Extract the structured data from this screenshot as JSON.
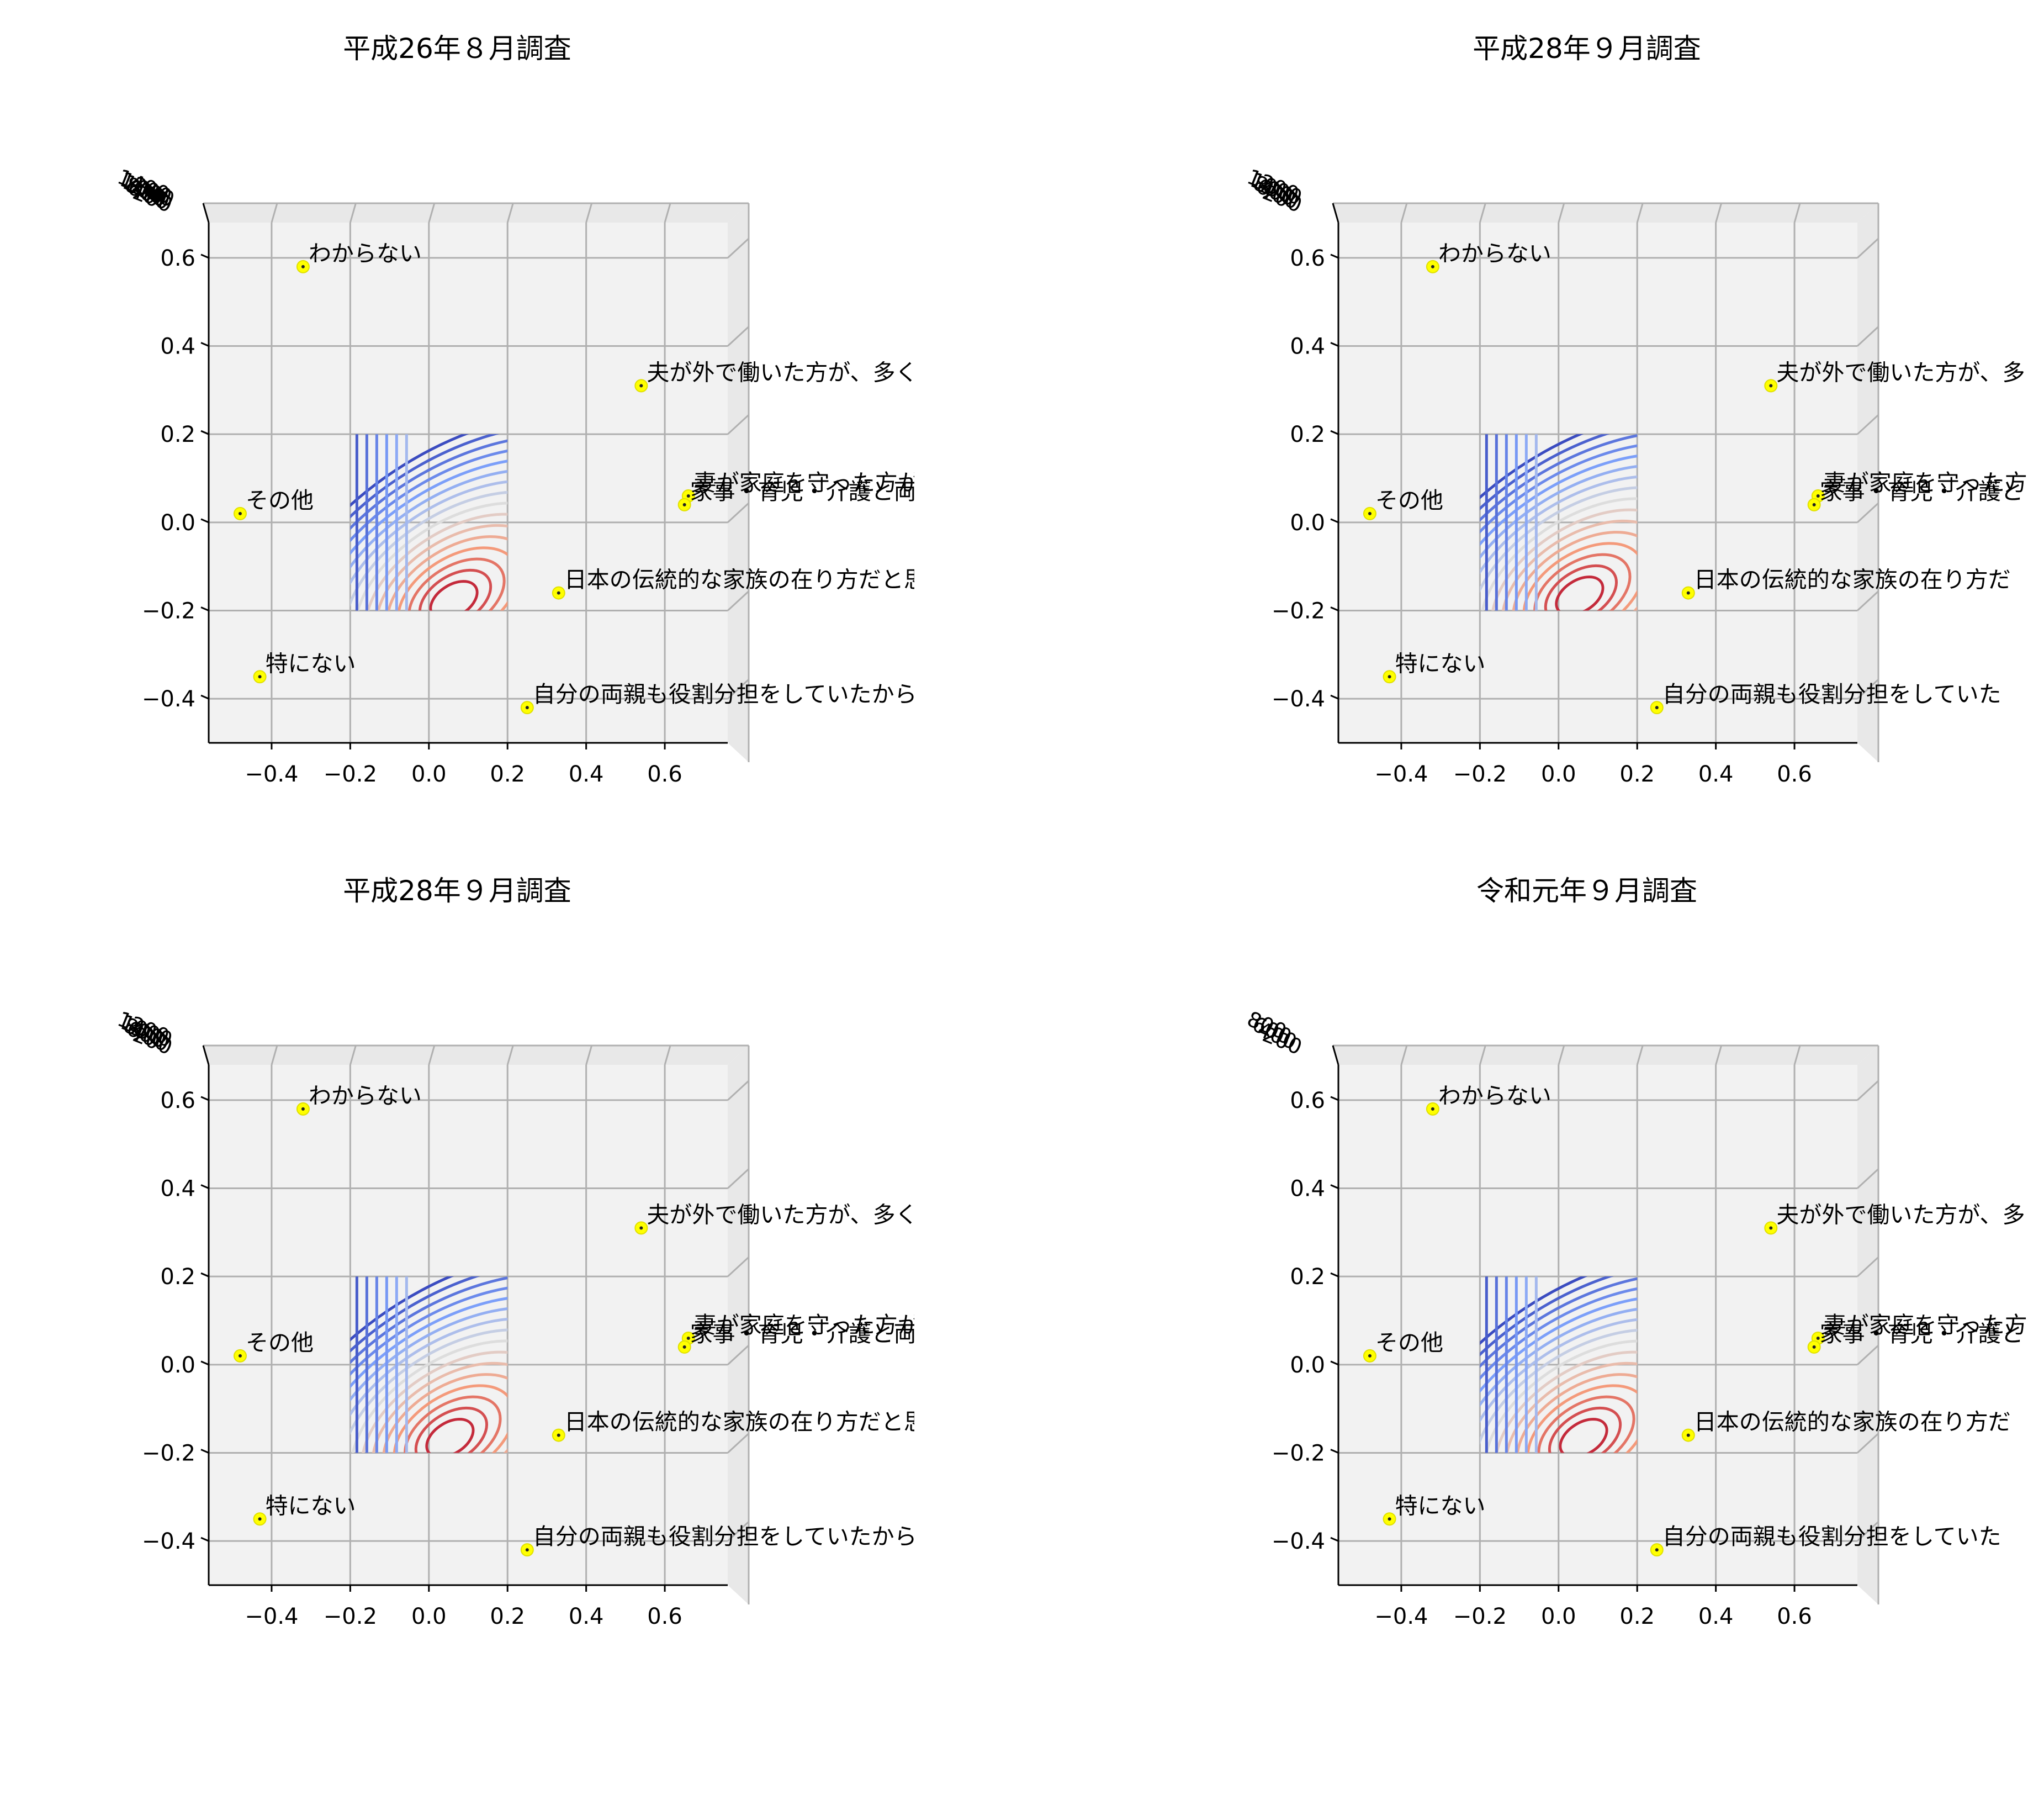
{
  "chart_data": [
    {
      "type": "3d-contour-scatter",
      "title": "平成26年８月調査",
      "view": "top-down",
      "xlim": [
        -0.56,
        0.76
      ],
      "ylim": [
        -0.5,
        0.68
      ],
      "xticks": [
        "−0.4",
        "−0.2",
        "0.0",
        "0.2",
        "0.4",
        "0.6"
      ],
      "yticks": [
        "−0.4",
        "−0.2",
        "0.0",
        "0.2",
        "0.4",
        "0.6"
      ],
      "zticks_overlapped": [
        "1400",
        "1200",
        "1000",
        "800",
        "600",
        "400",
        "200"
      ],
      "contour_peak": [
        0.06,
        -0.18
      ],
      "contour_colormap": "coolwarm",
      "points": [
        {
          "label": "わからない",
          "x": -0.32,
          "y": 0.58
        },
        {
          "label": "夫が外で働いた方が、多くの収入を得られると",
          "x": 0.54,
          "y": 0.31
        },
        {
          "label": "妻が家庭を守った方が、子供の成長などに",
          "x": 0.66,
          "y": 0.06
        },
        {
          "label": "家事・育児・介護と両立しながら、妻が働",
          "x": 0.65,
          "y": 0.04
        },
        {
          "label": "その他",
          "x": -0.48,
          "y": 0.02
        },
        {
          "label": "日本の伝統的な家族の在り方だと思うから",
          "x": 0.33,
          "y": -0.16
        },
        {
          "label": "特にない",
          "x": -0.43,
          "y": -0.35
        },
        {
          "label": "自分の両親も役割分担をしていたから",
          "x": 0.25,
          "y": -0.42
        }
      ]
    },
    {
      "type": "3d-contour-scatter",
      "title": "平成28年９月調査",
      "view": "top-down",
      "xlim": [
        -0.56,
        0.76
      ],
      "ylim": [
        -0.5,
        0.68
      ],
      "xticks": [
        "−0.4",
        "−0.2",
        "0.0",
        "0.2",
        "0.4",
        "0.6"
      ],
      "yticks": [
        "−0.4",
        "−0.2",
        "0.0",
        "0.2",
        "0.4",
        "0.6"
      ],
      "zticks_overlapped": [
        "1200",
        "1000",
        "800",
        "600",
        "400",
        "200"
      ],
      "contour_peak": [
        0.05,
        -0.17
      ],
      "contour_colormap": "coolwarm",
      "points": [
        {
          "label": "わからない",
          "x": -0.32,
          "y": 0.58
        },
        {
          "label": "夫が外で働いた方が、多",
          "x": 0.54,
          "y": 0.31
        },
        {
          "label": "妻が家庭を守った方",
          "x": 0.66,
          "y": 0.06
        },
        {
          "label": "家事・育児・介護と",
          "x": 0.65,
          "y": 0.04
        },
        {
          "label": "その他",
          "x": -0.48,
          "y": 0.02
        },
        {
          "label": "日本の伝統的な家族の在り方だ",
          "x": 0.33,
          "y": -0.16
        },
        {
          "label": "特にない",
          "x": -0.43,
          "y": -0.35
        },
        {
          "label": "自分の両親も役割分担をしていた",
          "x": 0.25,
          "y": -0.42
        }
      ]
    },
    {
      "type": "3d-contour-scatter",
      "title": "平成28年９月調査",
      "view": "top-down",
      "xlim": [
        -0.56,
        0.76
      ],
      "ylim": [
        -0.5,
        0.68
      ],
      "xticks": [
        "−0.4",
        "−0.2",
        "0.0",
        "0.2",
        "0.4",
        "0.6"
      ],
      "yticks": [
        "−0.4",
        "−0.2",
        "0.0",
        "0.2",
        "0.4",
        "0.6"
      ],
      "zticks_overlapped": [
        "1200",
        "1000",
        "800",
        "600",
        "400",
        "200"
      ],
      "contour_peak": [
        0.05,
        -0.17
      ],
      "contour_colormap": "coolwarm",
      "points": [
        {
          "label": "わからない",
          "x": -0.32,
          "y": 0.58
        },
        {
          "label": "夫が外で働いた方が、多くの収入を得られると",
          "x": 0.54,
          "y": 0.31
        },
        {
          "label": "妻が家庭を守った方が、子供の成長などに",
          "x": 0.66,
          "y": 0.06
        },
        {
          "label": "家事・育児・介護と両立しながら、妻が働",
          "x": 0.65,
          "y": 0.04
        },
        {
          "label": "その他",
          "x": -0.48,
          "y": 0.02
        },
        {
          "label": "日本の伝統的な家族の在り方だと思うから",
          "x": 0.33,
          "y": -0.16
        },
        {
          "label": "特にない",
          "x": -0.43,
          "y": -0.35
        },
        {
          "label": "自分の両親も役割分担をしていたから",
          "x": 0.25,
          "y": -0.42
        }
      ]
    },
    {
      "type": "3d-contour-scatter",
      "title": "令和元年９月調査",
      "view": "top-down",
      "xlim": [
        -0.56,
        0.76
      ],
      "ylim": [
        -0.5,
        0.68
      ],
      "xticks": [
        "−0.4",
        "−0.2",
        "0.0",
        "0.2",
        "0.4",
        "0.6"
      ],
      "yticks": [
        "−0.4",
        "−0.2",
        "0.0",
        "0.2",
        "0.4",
        "0.6"
      ],
      "zticks_overlapped": [
        "800",
        "600",
        "400",
        "200"
      ],
      "contour_peak": [
        0.06,
        -0.17
      ],
      "contour_colormap": "coolwarm",
      "points": [
        {
          "label": "わからない",
          "x": -0.32,
          "y": 0.58
        },
        {
          "label": "夫が外で働いた方が、多",
          "x": 0.54,
          "y": 0.31
        },
        {
          "label": "妻が家庭を守った方",
          "x": 0.66,
          "y": 0.06
        },
        {
          "label": "家事・育児・介護と",
          "x": 0.65,
          "y": 0.04
        },
        {
          "label": "その他",
          "x": -0.48,
          "y": 0.02
        },
        {
          "label": "日本の伝統的な家族の在り方だ",
          "x": 0.33,
          "y": -0.16
        },
        {
          "label": "特にない",
          "x": -0.43,
          "y": -0.35
        },
        {
          "label": "自分の両親も役割分担をしていた",
          "x": 0.25,
          "y": -0.42
        }
      ]
    }
  ]
}
